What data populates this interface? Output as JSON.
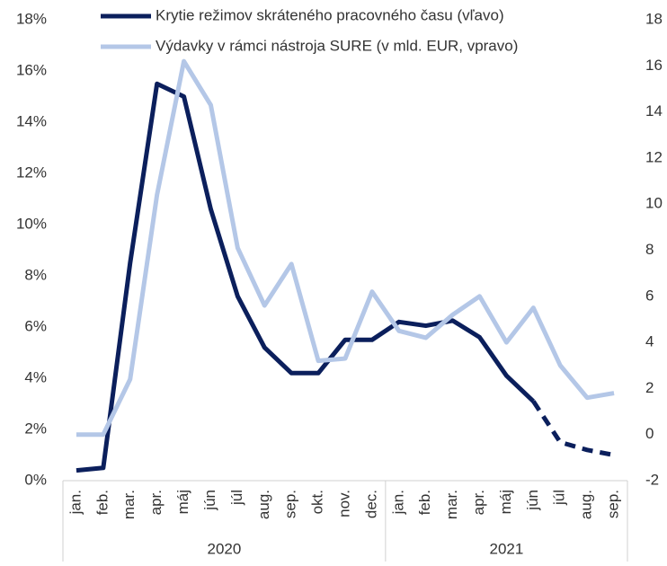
{
  "chart_data": {
    "type": "line",
    "categories": [
      "jan.",
      "feb.",
      "mar.",
      "apr.",
      "máj",
      "jún",
      "júl",
      "aug.",
      "sep.",
      "okt.",
      "nov.",
      "dec.",
      "jan.",
      "feb.",
      "mar.",
      "apr.",
      "máj",
      "jún",
      "júl",
      "aug.",
      "sep."
    ],
    "x_groups": [
      {
        "label": "2020",
        "span": 12
      },
      {
        "label": "2021",
        "span": 9
      }
    ],
    "series": [
      {
        "name": "Krytie režimov skráteného pracovného času (vľavo)",
        "color": "#0b1f5c",
        "axis": "y",
        "dashed_from": 17,
        "values": [
          0.4,
          0.5,
          8.5,
          15.5,
          15.0,
          10.6,
          7.2,
          5.2,
          4.2,
          4.2,
          5.5,
          5.5,
          6.2,
          6.05,
          6.25,
          5.6,
          4.1,
          3.1,
          1.5,
          1.2,
          1.0
        ]
      },
      {
        "name": "Výdavky v rámci nástroja SURE (v mld. EUR, vpravo)",
        "color": "#b4c7e7",
        "axis": "y2",
        "values": [
          0,
          0,
          2.4,
          10.4,
          16.2,
          14.3,
          8.1,
          5.6,
          7.4,
          3.2,
          3.3,
          6.2,
          4.5,
          4.2,
          5.2,
          6.0,
          4.0,
          5.5,
          3.0,
          1.6,
          1.8
        ]
      }
    ],
    "ylim": [
      0,
      18
    ],
    "yticks": [
      {
        "value": 0,
        "label": "0%"
      },
      {
        "value": 2,
        "label": "2%"
      },
      {
        "value": 4,
        "label": "4%"
      },
      {
        "value": 6,
        "label": "6%"
      },
      {
        "value": 8,
        "label": "8%"
      },
      {
        "value": 10,
        "label": "10%"
      },
      {
        "value": 12,
        "label": "12%"
      },
      {
        "value": 14,
        "label": "14%"
      },
      {
        "value": 16,
        "label": "16%"
      },
      {
        "value": 18,
        "label": "18%"
      }
    ],
    "y2lim": [
      -2,
      18
    ],
    "y2ticks": [
      -2,
      0,
      2,
      4,
      6,
      8,
      10,
      12,
      14,
      16,
      18
    ],
    "legend": "top"
  }
}
